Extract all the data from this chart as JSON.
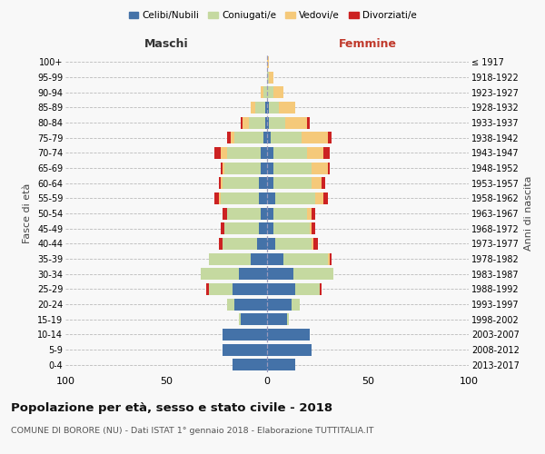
{
  "age_groups": [
    "0-4",
    "5-9",
    "10-14",
    "15-19",
    "20-24",
    "25-29",
    "30-34",
    "35-39",
    "40-44",
    "45-49",
    "50-54",
    "55-59",
    "60-64",
    "65-69",
    "70-74",
    "75-79",
    "80-84",
    "85-89",
    "90-94",
    "95-99",
    "100+"
  ],
  "birth_years": [
    "2013-2017",
    "2008-2012",
    "2003-2007",
    "1998-2002",
    "1993-1997",
    "1988-1992",
    "1983-1987",
    "1978-1982",
    "1973-1977",
    "1968-1972",
    "1963-1967",
    "1958-1962",
    "1953-1957",
    "1948-1952",
    "1943-1947",
    "1938-1942",
    "1933-1937",
    "1928-1932",
    "1923-1927",
    "1918-1922",
    "≤ 1917"
  ],
  "maschi": {
    "celibi": [
      17,
      22,
      22,
      13,
      16,
      17,
      14,
      8,
      5,
      4,
      3,
      4,
      4,
      3,
      3,
      2,
      1,
      1,
      0,
      0,
      0
    ],
    "coniugati": [
      0,
      0,
      0,
      1,
      4,
      12,
      19,
      21,
      17,
      17,
      17,
      19,
      18,
      18,
      17,
      14,
      8,
      5,
      2,
      0,
      0
    ],
    "vedovi": [
      0,
      0,
      0,
      0,
      0,
      0,
      0,
      0,
      0,
      0,
      0,
      1,
      1,
      1,
      3,
      2,
      3,
      2,
      1,
      0,
      0
    ],
    "divorziati": [
      0,
      0,
      0,
      0,
      0,
      1,
      0,
      0,
      2,
      2,
      2,
      2,
      1,
      1,
      3,
      2,
      1,
      0,
      0,
      0,
      0
    ]
  },
  "femmine": {
    "nubili": [
      14,
      22,
      21,
      10,
      12,
      14,
      13,
      8,
      4,
      3,
      3,
      4,
      3,
      3,
      3,
      2,
      1,
      1,
      0,
      0,
      0
    ],
    "coniugate": [
      0,
      0,
      0,
      1,
      4,
      12,
      20,
      22,
      18,
      18,
      17,
      20,
      19,
      19,
      17,
      15,
      8,
      5,
      3,
      1,
      0
    ],
    "vedove": [
      0,
      0,
      0,
      0,
      0,
      0,
      0,
      1,
      1,
      1,
      2,
      4,
      5,
      8,
      8,
      13,
      11,
      8,
      5,
      2,
      1
    ],
    "divorziate": [
      0,
      0,
      0,
      0,
      0,
      1,
      0,
      1,
      2,
      2,
      2,
      2,
      2,
      1,
      3,
      2,
      1,
      0,
      0,
      0,
      0
    ]
  },
  "colors": {
    "celibi": "#4472a8",
    "coniugati": "#c5d9a0",
    "vedovi": "#f5c97a",
    "divorziati": "#cc2222"
  },
  "xlim": 100,
  "title": "Popolazione per età, sesso e stato civile - 2018",
  "subtitle": "COMUNE DI BORORE (NU) - Dati ISTAT 1° gennaio 2018 - Elaborazione TUTTITALIA.IT",
  "ylabel_left": "Fasce di età",
  "ylabel_right": "Anni di nascita",
  "xlabel_maschi": "Maschi",
  "xlabel_femmine": "Femmine",
  "bg_color": "#f8f8f8",
  "grid_color": "#cccccc"
}
